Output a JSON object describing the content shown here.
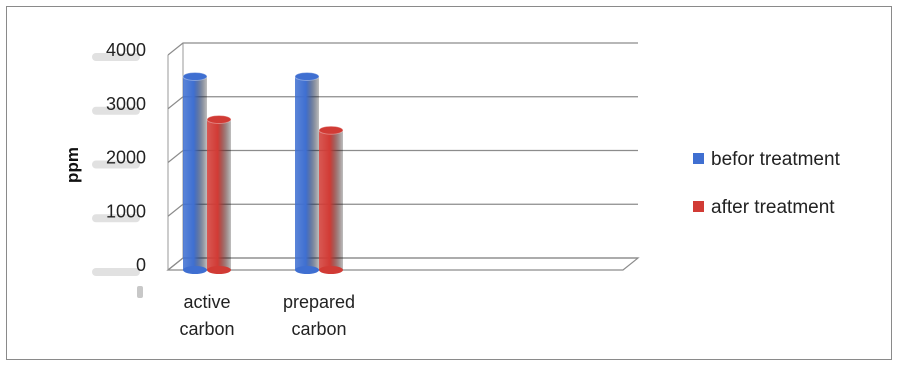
{
  "chart_data": {
    "type": "bar",
    "categories": [
      [
        "active",
        "carbon"
      ],
      [
        "prepared",
        "carbon"
      ]
    ],
    "series": [
      {
        "name": "befor treatment",
        "values": [
          3600,
          3600
        ],
        "color": "#3F6FD1"
      },
      {
        "name": "after treatment",
        "values": [
          2800,
          2600
        ],
        "color": "#D13B35"
      }
    ],
    "ylabel": "ppm",
    "ylim": [
      0,
      4000
    ],
    "yticks": [
      0,
      1000,
      2000,
      3000,
      4000
    ],
    "grid": true,
    "legend": "right",
    "style": "3d-cylinder"
  }
}
